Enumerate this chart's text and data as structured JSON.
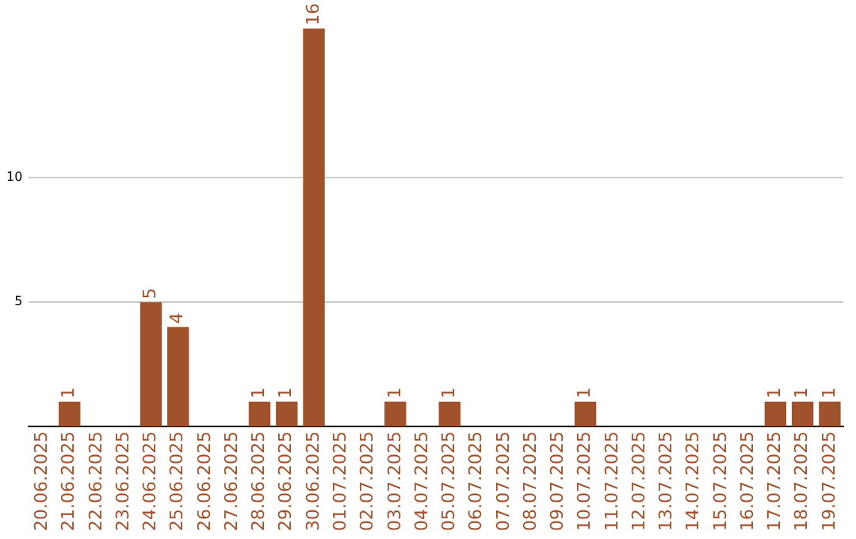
{
  "chart_data": {
    "type": "bar",
    "categories": [
      "20.06.2025",
      "21.06.2025",
      "22.06.2025",
      "23.06.2025",
      "24.06.2025",
      "25.06.2025",
      "26.06.2025",
      "27.06.2025",
      "28.06.2025",
      "29.06.2025",
      "30.06.2025",
      "01.07.2025",
      "02.07.2025",
      "03.07.2025",
      "04.07.2025",
      "05.07.2025",
      "06.07.2025",
      "07.07.2025",
      "08.07.2025",
      "09.07.2025",
      "10.07.2025",
      "11.07.2025",
      "12.07.2025",
      "13.07.2025",
      "14.07.2025",
      "15.07.2025",
      "16.07.2025",
      "17.07.2025",
      "18.07.2025",
      "19.07.2025"
    ],
    "values": [
      0,
      1,
      0,
      0,
      5,
      4,
      0,
      0,
      1,
      1,
      16,
      0,
      0,
      1,
      0,
      1,
      0,
      0,
      0,
      0,
      1,
      0,
      0,
      0,
      0,
      0,
      0,
      1,
      1,
      1
    ],
    "value_labels": [
      null,
      "1",
      null,
      null,
      "5",
      "4",
      null,
      null,
      "1",
      "1",
      "16",
      null,
      null,
      "1",
      null,
      "1",
      null,
      null,
      null,
      null,
      "1",
      null,
      null,
      null,
      null,
      null,
      null,
      "1",
      "1",
      "1"
    ],
    "color": "#a0522d",
    "ylim": [
      0,
      16
    ],
    "yticks": [
      5,
      10
    ],
    "grid": "y"
  }
}
